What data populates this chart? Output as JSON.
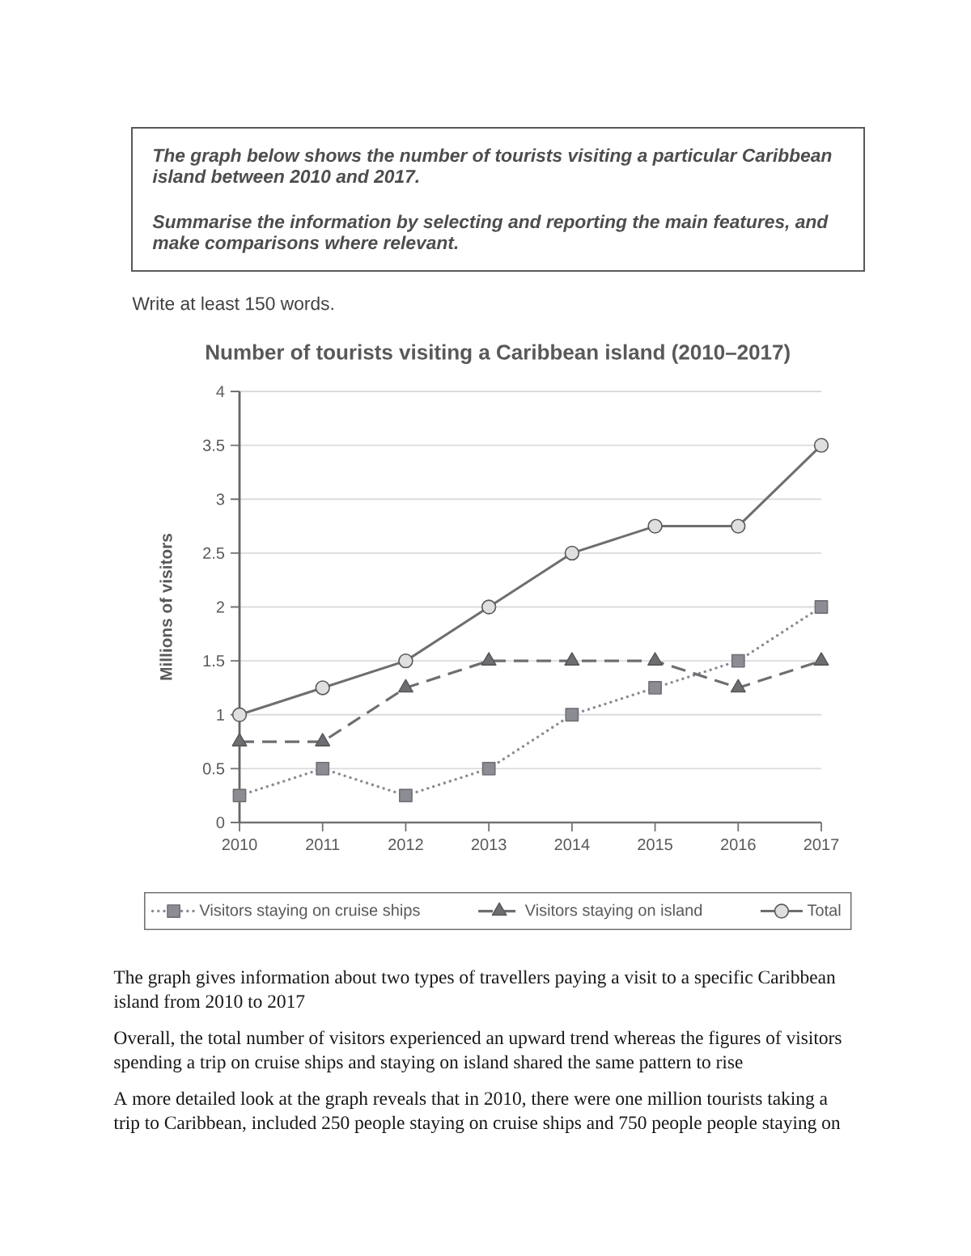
{
  "chart_data": {
    "type": "line",
    "title": "Number of tourists visiting a Caribbean island (2010–2017)",
    "ylabel": "Millions of visitors",
    "categories": [
      "2010",
      "2011",
      "2012",
      "2013",
      "2014",
      "2015",
      "2016",
      "2017"
    ],
    "ylim": [
      0,
      4
    ],
    "yticks": [
      0,
      0.5,
      1,
      1.5,
      2,
      2.5,
      3,
      3.5,
      4
    ],
    "grid": "y",
    "legend": "bottom",
    "series": [
      {
        "name": "Visitors staying on cruise ships",
        "color": "#8c8c94",
        "marker": "square",
        "line_style": "dotted",
        "values": [
          0.25,
          0.5,
          0.25,
          0.5,
          1,
          1.25,
          1.5,
          2
        ]
      },
      {
        "name": "Visitors staying on island",
        "color": "#6e6e72",
        "marker": "triangle",
        "line_style": "dashed",
        "values": [
          0.75,
          0.75,
          1.25,
          1.5,
          1.5,
          1.5,
          1.25,
          1.5
        ]
      },
      {
        "name": "Total",
        "color": "#6e6e72",
        "marker": "circle",
        "line_style": "solid",
        "values": [
          1,
          1.25,
          1.5,
          2,
          2.5,
          2.75,
          2.75,
          3.5
        ]
      }
    ],
    "annotations": [
      "The graph below shows the number of tourists visiting a particular Caribbean island between 2010 and 2017.",
      "Summarise the information by selecting and reporting the main features, and make comparisons where relevant.",
      "Write at least 150 words.",
      "The graph gives information about two types of travellers paying a visit to a specific Caribbean island from 2010 to 2017",
      "Overall, the total number of visitors experienced an upward trend whereas the figures of visitors spending a trip on cruise ships and staying on island shared the same pattern to rise",
      "A more detailed look at the graph reveals that in 2010, there were one million tourists taking a trip to Caribbean, included 250 people staying on cruise ships and 750 people people staying on"
    ]
  }
}
